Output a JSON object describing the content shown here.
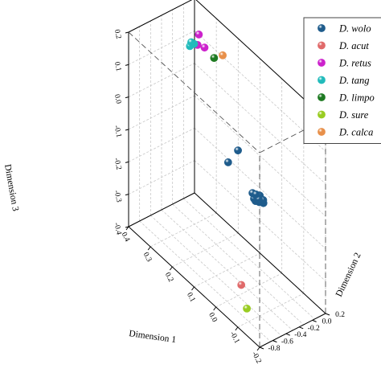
{
  "chart_data": {
    "type": "scatter3d",
    "title": "",
    "axes": {
      "x": {
        "label": "Dimension 1",
        "range": [
          -0.2,
          0.4
        ],
        "ticks": [
          "0.4",
          "0.3",
          "0.2",
          "0.1",
          "0.0",
          "-0.1",
          "-0.2"
        ]
      },
      "y": {
        "label": "Dimension 2",
        "range": [
          -0.8,
          0.2
        ],
        "ticks": [
          "-0.8",
          "-0.6",
          "-0.4",
          "-0.2",
          "0.0",
          "0.2"
        ]
      },
      "z": {
        "label": "Dimension 3",
        "range": [
          -0.4,
          0.2
        ],
        "ticks": [
          "0.2",
          "0.1",
          "0.0",
          "-0.1",
          "-0.2",
          "-0.3",
          "-0.4"
        ]
      }
    },
    "grid": true,
    "legend_position": "top-right",
    "series": [
      {
        "name": "D. wolo",
        "color": "#1f5c8c",
        "points": [
          [
            0.05,
            -0.3,
            0.0
          ],
          [
            0.08,
            -0.35,
            -0.05
          ],
          [
            -0.12,
            -0.6,
            0.0
          ],
          [
            -0.14,
            -0.62,
            0.0
          ],
          [
            -0.13,
            -0.58,
            -0.01
          ],
          [
            -0.15,
            -0.64,
            0.0
          ],
          [
            -0.12,
            -0.62,
            -0.01
          ],
          [
            -0.14,
            -0.6,
            0.01
          ],
          [
            -0.13,
            -0.64,
            0.0
          ],
          [
            -0.15,
            -0.58,
            0.0
          ],
          [
            -0.11,
            -0.61,
            0.0
          ],
          [
            -0.16,
            -0.61,
            0.0
          ],
          [
            -0.13,
            -0.63,
            -0.01
          ],
          [
            -0.12,
            -0.59,
            0.0
          ],
          [
            -0.15,
            -0.62,
            0.01
          ]
        ]
      },
      {
        "name": "D. acut",
        "color": "#e06a6a",
        "points": [
          [
            0.05,
            -0.25,
            -0.42
          ]
        ]
      },
      {
        "name": "D. retus",
        "color": "#cc22cc",
        "points": [
          [
            0.35,
            0.1,
            0.13
          ],
          [
            0.35,
            0.08,
            0.1
          ],
          [
            0.33,
            0.12,
            0.1
          ]
        ]
      },
      {
        "name": "D. tang",
        "color": "#22bbbb",
        "points": [
          [
            0.4,
            0.15,
            0.07
          ],
          [
            0.4,
            0.13,
            0.06
          ],
          [
            0.39,
            0.16,
            0.07
          ]
        ]
      },
      {
        "name": "D. limpo",
        "color": "#1e7a22",
        "points": [
          [
            0.25,
            0.0,
            0.13
          ]
        ]
      },
      {
        "name": "D. sure",
        "color": "#99cc22",
        "points": [
          [
            0.1,
            0.0,
            -0.55
          ]
        ]
      },
      {
        "name": "D. calca",
        "color": "#e8904a",
        "points": [
          [
            0.12,
            -0.3,
            0.25
          ]
        ]
      }
    ]
  }
}
